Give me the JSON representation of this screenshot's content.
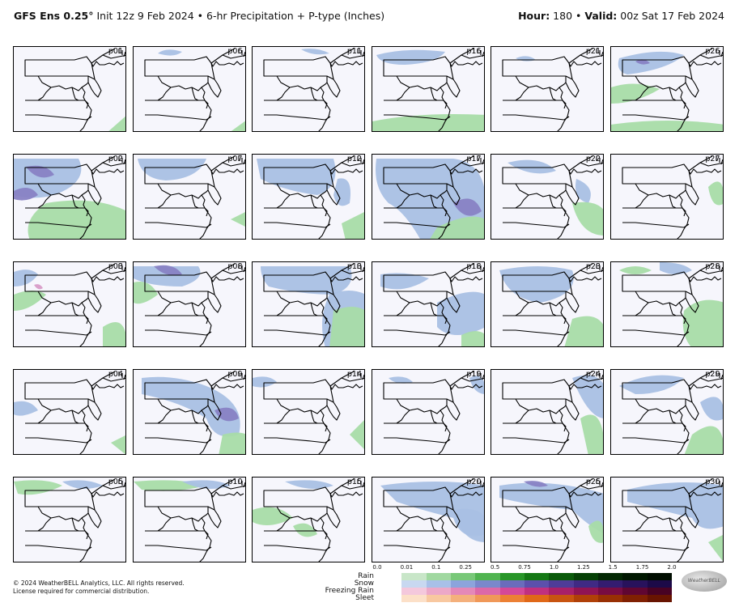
{
  "header": {
    "model": "GFS Ens 0.25",
    "degree": "°",
    "init": " Init 12z 9 Feb 2024 • 6-hr Precipitation + P-type (Inches)",
    "hour_label": "Hour:",
    "hour_value": " 180 • ",
    "valid_label": "Valid:",
    "valid_value": " 00z Sat 17 Feb 2024"
  },
  "panels": [
    "p01",
    "p06",
    "p11",
    "p16",
    "p21",
    "p26",
    "p02",
    "p07",
    "p12",
    "p17",
    "p22",
    "p27",
    "p03",
    "p08",
    "p13",
    "p18",
    "p23",
    "p28",
    "p04",
    "p09",
    "p14",
    "p19",
    "p24",
    "p29",
    "p05",
    "p10",
    "p15",
    "p20",
    "p25",
    "p30"
  ],
  "legend": {
    "ticks": [
      "0.0",
      "0.01",
      "0.1",
      "0.25",
      "0.5",
      "0.75",
      "1.0",
      "1.25",
      "1.5",
      "1.75",
      "2.0"
    ],
    "types": [
      {
        "name": "Rain",
        "colors": [
          "#ffffff",
          "#c8e6c8",
          "#a0d8a0",
          "#78c878",
          "#50b450",
          "#289628",
          "#147814",
          "#0a5a0a",
          "#054005",
          "#032803",
          "#011801",
          "#000d00"
        ]
      },
      {
        "name": "Snow",
        "colors": [
          "#ffffff",
          "#c8d8f0",
          "#a8c0e8",
          "#8ca4dc",
          "#7a88cc",
          "#6a6cbc",
          "#5c50ac",
          "#4e3c98",
          "#402a84",
          "#341c70",
          "#28125c",
          "#1c0a48"
        ]
      },
      {
        "name": "Freezing Rain",
        "colors": [
          "#ffffff",
          "#f4c8dc",
          "#eca8c8",
          "#e488b8",
          "#dc68a8",
          "#d44898",
          "#c03080",
          "#a82068",
          "#901454",
          "#780c42",
          "#600632",
          "#480224"
        ]
      },
      {
        "name": "Sleet",
        "colors": [
          "#ffffff",
          "#fce0c8",
          "#f8c8a0",
          "#f4b07c",
          "#f09858",
          "#ec8034",
          "#e06818",
          "#c85410",
          "#b04008",
          "#983004",
          "#802002",
          "#681401"
        ]
      }
    ]
  },
  "footer": {
    "line1": "© 2024 WeatherBELL Analytics, LLC. All rights reserved.",
    "line2": "License required for commercial distribution."
  },
  "logo_text": "WeatherBELL"
}
